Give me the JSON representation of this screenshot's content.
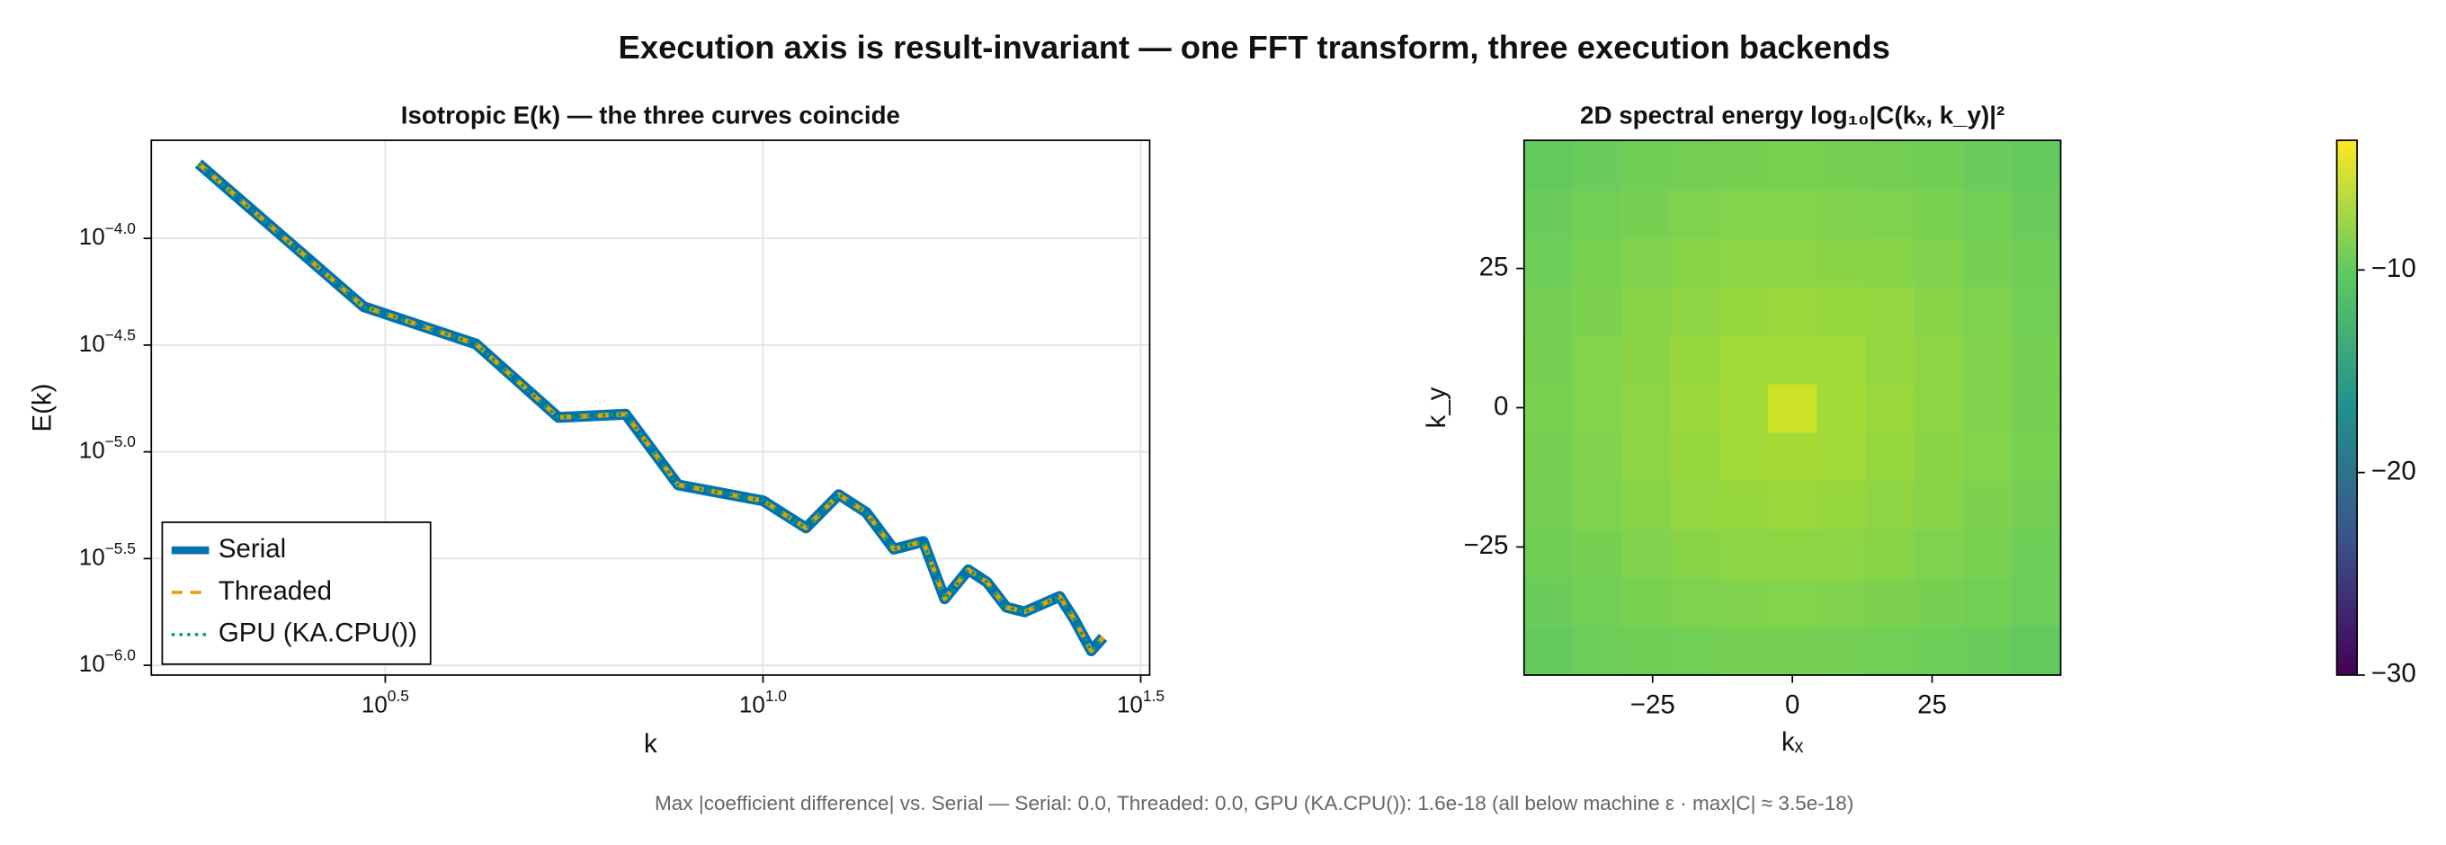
{
  "title": "Execution axis is result-invariant — one FFT transform, three execution backends",
  "footnote": "Max |coefficient difference| vs. Serial —  Serial: 0.0,   Threaded: 0.0,   GPU (KA.CPU()): 1.6e-18   (all below machine ε · max|C| ≈ 3.5e-18)",
  "chart_data": [
    {
      "type": "line",
      "title": "Isotropic E(k) — the three curves coincide",
      "x_label": "k",
      "y_label": "E(k)",
      "x": [
        1.79,
        2.96,
        4.17,
        5.36,
        6.58,
        7.72,
        10,
        11.4,
        12.6,
        13.7,
        14.9,
        16.3,
        17.4,
        18.7,
        19.8,
        21.0,
        22.2,
        24.7,
        25.8,
        27.2,
        28.2
      ],
      "series": [
        {
          "name": "Serial",
          "color": "#0072b2",
          "style": "solid",
          "values": [
            0.000224,
            4.79e-05,
            3.2e-05,
            1.45e-05,
            1.5e-05,
            7e-06,
            5.9e-06,
            4.4e-06,
            6.3e-06,
            5.2e-06,
            3.5e-06,
            3.8e-06,
            2.05e-06,
            2.8e-06,
            2.45e-06,
            1.87e-06,
            1.78e-06,
            2.1e-06,
            1.65e-06,
            1.17e-06,
            1.35e-06
          ]
        },
        {
          "name": "Threaded",
          "color": "#e69f00",
          "style": "dashed",
          "values": [
            0.000224,
            4.79e-05,
            3.2e-05,
            1.45e-05,
            1.5e-05,
            7e-06,
            5.9e-06,
            4.4e-06,
            6.3e-06,
            5.2e-06,
            3.5e-06,
            3.8e-06,
            2.05e-06,
            2.8e-06,
            2.45e-06,
            1.87e-06,
            1.78e-06,
            2.1e-06,
            1.65e-06,
            1.17e-06,
            1.35e-06
          ]
        },
        {
          "name": "GPU (KA.CPU())",
          "color": "#009e73",
          "style": "dotted",
          "values": [
            0.000224,
            4.79e-05,
            3.2e-05,
            1.45e-05,
            1.5e-05,
            7e-06,
            5.9e-06,
            4.4e-06,
            6.3e-06,
            5.2e-06,
            3.5e-06,
            3.8e-06,
            2.05e-06,
            2.8e-06,
            2.45e-06,
            1.87e-06,
            1.78e-06,
            2.1e-06,
            1.65e-06,
            1.17e-06,
            1.35e-06
          ]
        }
      ],
      "xscale": "log",
      "yscale": "log",
      "xlim": [
        1.55,
        32.5
      ],
      "ylim": [
        9e-07,
        0.000288
      ],
      "xticks": [
        {
          "value": 3.1623,
          "label": "10^0.5"
        },
        {
          "value": 10,
          "label": "10^1.0"
        },
        {
          "value": 31.623,
          "label": "10^1.5"
        }
      ],
      "yticks": [
        {
          "value": 1e-06,
          "label": "10^−6.0"
        },
        {
          "value": 3.1623e-06,
          "label": "10^−5.5"
        },
        {
          "value": 1e-05,
          "label": "10^−5.0"
        },
        {
          "value": 3.1623e-05,
          "label": "10^−4.5"
        },
        {
          "value": 0.0001,
          "label": "10^−4.0"
        }
      ],
      "grid": true,
      "legend": "lower left"
    },
    {
      "type": "heatmap",
      "title": "2D spectral energy  log₁₀|C(kₓ, k_y)|²",
      "x_label": "kₓ",
      "y_label": "k_y",
      "x": [
        -43.6,
        -34.9,
        -26.2,
        -17.5,
        -8.7,
        0,
        8.7,
        17.5,
        26.2,
        34.9,
        43.6
      ],
      "y": [
        -43.6,
        -34.9,
        -26.2,
        -17.5,
        -8.7,
        0,
        8.7,
        17.5,
        26.2,
        34.9,
        43.6
      ],
      "z": [
        [
          -10.0,
          -9.6,
          -9.4,
          -9.3,
          -9.1,
          -9.1,
          -9.2,
          -9.3,
          -9.5,
          -9.7,
          -10.1
        ],
        [
          -9.7,
          -9.3,
          -9.0,
          -8.8,
          -8.7,
          -8.6,
          -8.7,
          -8.9,
          -9.1,
          -9.3,
          -9.6
        ],
        [
          -9.4,
          -9.1,
          -8.7,
          -8.4,
          -8.2,
          -8.1,
          -8.2,
          -8.4,
          -8.8,
          -9.0,
          -9.5
        ],
        [
          -9.2,
          -8.8,
          -8.4,
          -8.0,
          -7.8,
          -7.7,
          -7.8,
          -8.1,
          -8.4,
          -8.9,
          -9.2
        ],
        [
          -9.1,
          -8.7,
          -8.2,
          -7.8,
          -7.4,
          -7.2,
          -7.4,
          -7.8,
          -8.3,
          -8.6,
          -9.0
        ],
        [
          -9.0,
          -8.6,
          -8.2,
          -7.7,
          -7.3,
          -5.5,
          -7.3,
          -7.7,
          -8.2,
          -8.7,
          -9.1
        ],
        [
          -9.1,
          -8.6,
          -8.3,
          -7.8,
          -7.4,
          -7.3,
          -7.4,
          -7.9,
          -8.2,
          -8.7,
          -9.1
        ],
        [
          -9.2,
          -8.9,
          -8.4,
          -8.1,
          -7.8,
          -7.7,
          -7.8,
          -8.0,
          -8.4,
          -8.8,
          -9.3
        ],
        [
          -9.5,
          -9.0,
          -8.7,
          -8.4,
          -8.2,
          -8.2,
          -8.3,
          -8.4,
          -8.7,
          -9.1,
          -9.4
        ],
        [
          -9.7,
          -9.3,
          -9.1,
          -8.8,
          -8.6,
          -8.6,
          -8.7,
          -8.8,
          -9.0,
          -9.3,
          -9.7
        ],
        [
          -10.1,
          -9.7,
          -9.4,
          -9.2,
          -9.1,
          -9.0,
          -9.1,
          -9.2,
          -9.4,
          -9.7,
          -10.0
        ]
      ],
      "xlim": [
        -48,
        48
      ],
      "ylim": [
        -48,
        48
      ],
      "xticks": [
        {
          "value": -25,
          "label": "−25"
        },
        0,
        25
      ],
      "yticks": [
        {
          "value": -25,
          "label": "−25"
        },
        0,
        25
      ],
      "colormap": "viridis",
      "zlim": [
        -30,
        -3.6
      ],
      "zticks": [
        {
          "value": -30,
          "label": "−30"
        },
        {
          "value": -20,
          "label": "−20"
        },
        {
          "value": -10,
          "label": "−10"
        }
      ]
    }
  ]
}
